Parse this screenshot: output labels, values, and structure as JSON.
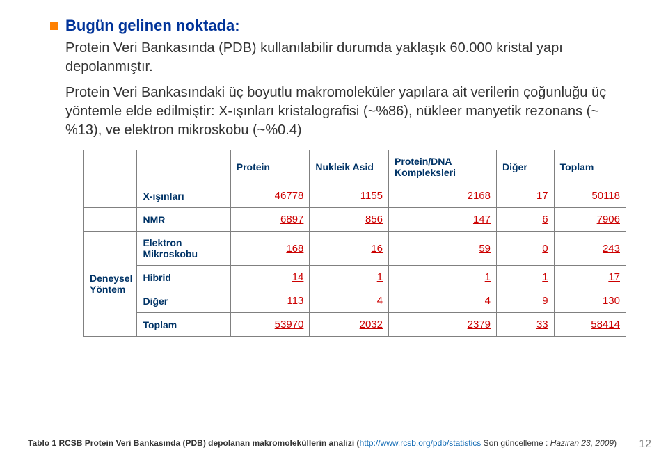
{
  "title": "Bugün gelinen noktada:",
  "para1": "Protein Veri Bankasında (PDB) kullanılabilir durumda yaklaşık 60.000 kristal yapı depolanmıştır.",
  "para2": "Protein Veri Bankasındaki üç boyutlu makromoleküler yapılara ait verilerin çoğunluğu üç yöntemle elde edilmiştir: X-ışınları kristalografisi (~%86), nükleer manyetik rezonans (~ %13), ve elektron mikroskobu (~%0.4)",
  "headers": {
    "protein": "Protein",
    "nukleik": "Nukleik Asid",
    "dna": "Protein/DNA Kompleksleri",
    "diger": "Diğer",
    "toplam": "Toplam"
  },
  "sidelabel_l1": "Deneysel",
  "sidelabel_l2": "Yöntem",
  "rows": {
    "xray": {
      "label": "X-ışınları",
      "v": [
        "46778",
        "1155",
        "2168",
        "17",
        "50118"
      ]
    },
    "nmr": {
      "label": "NMR",
      "v": [
        "6897",
        "856",
        "147",
        "6",
        "7906"
      ]
    },
    "em": {
      "label": "Elektron Mikroskobu",
      "v": [
        "168",
        "16",
        "59",
        "0",
        "243"
      ]
    },
    "hybrid": {
      "label": "Hibrid",
      "v": [
        "14",
        "1",
        "1",
        "1",
        "17"
      ]
    },
    "other": {
      "label": "Diğer",
      "v": [
        "113",
        "4",
        "4",
        "9",
        "130"
      ]
    },
    "total": {
      "label": "Toplam",
      "v": [
        "53970",
        "2032",
        "2379",
        "33",
        "58414"
      ]
    }
  },
  "caption": {
    "prefix_bold": "Tablo 1 RCSB Protein Veri Bankasında (PDB) depolanan makromoleküllerin analizi (",
    "link": "http://www.rcsb.org/pdb/statistics",
    "suffix": "  Son güncelleme : ",
    "date_italic": "Haziran 23, 2009",
    "close": ")"
  },
  "pagenum": "12",
  "colors": {
    "title": "#003399",
    "bullet": "#ff8000",
    "header_text": "#003366",
    "num": "#cc0000",
    "border": "#808080",
    "link": "#106ab4",
    "pagenum": "#808080"
  }
}
